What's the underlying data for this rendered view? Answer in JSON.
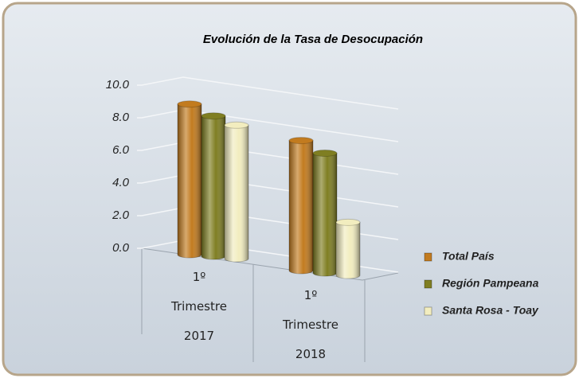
{
  "chart_data": {
    "type": "bar3d",
    "title": "Evolución de la Tasa de Desocupación",
    "categories": [
      "1º Trimestre 2017",
      "1º Trimestre 2018"
    ],
    "series": [
      {
        "name": "Total País",
        "color": "#c27b1f",
        "values": [
          8.8,
          7.6
        ]
      },
      {
        "name": "Región Pampeana",
        "color": "#7f7e22",
        "values": [
          8.2,
          7.0
        ]
      },
      {
        "name": "Santa Rosa - Toay",
        "color": "#f2edbf",
        "values": [
          7.8,
          3.1
        ]
      }
    ],
    "ylim": [
      0,
      10
    ],
    "yticks": [
      {
        "value": 0,
        "label": "0.0"
      },
      {
        "value": 2,
        "label": "2.0"
      },
      {
        "value": 4,
        "label": "4.0"
      },
      {
        "value": 6,
        "label": "6.0"
      },
      {
        "value": 8,
        "label": "8.0"
      },
      {
        "value": 10,
        "label": "10.0"
      }
    ],
    "grid": true,
    "legend": "right"
  }
}
